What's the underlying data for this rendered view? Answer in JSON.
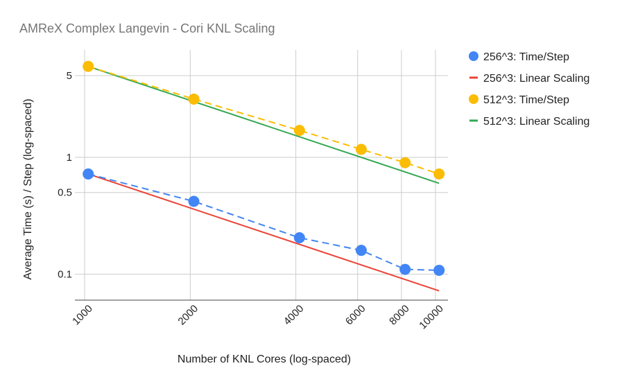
{
  "chart_data": {
    "type": "scatter",
    "title": "AMReX Complex Langevin - Cori KNL Scaling",
    "xlabel": "Number of KNL Cores (log-spaced)",
    "ylabel": "Average Time (s) / Step (log-spaced)",
    "x_scale": "log",
    "y_scale": "log",
    "xlim": [
      1000,
      10000
    ],
    "ylim": [
      0.06,
      8.3
    ],
    "x_ticks": [
      1000,
      2000,
      4000,
      6000,
      8000,
      10000
    ],
    "x_tick_labels": [
      "1000",
      "2000",
      "4000",
      "6000",
      "8000",
      "10000"
    ],
    "y_ticks": [
      0.1,
      0.5,
      1,
      5
    ],
    "y_tick_labels": [
      "0.1",
      "0.5",
      "1",
      "5"
    ],
    "grid": true,
    "legend_position": "right",
    "series": [
      {
        "name": "256^3: Time/Step",
        "style": "markers-dashed",
        "color": "#4285f4",
        "points": [
          [
            1024,
            0.72
          ],
          [
            2048,
            0.42
          ],
          [
            4096,
            0.205
          ],
          [
            6144,
            0.16
          ],
          [
            8192,
            0.11
          ],
          [
            10240,
            0.108
          ]
        ]
      },
      {
        "name": "256^3: Linear Scaling",
        "style": "line",
        "color": "#ea4335",
        "points": [
          [
            1024,
            0.72
          ],
          [
            10240,
            0.072
          ]
        ]
      },
      {
        "name": "512^3: Time/Step",
        "style": "markers-dashed",
        "color": "#fbbc04",
        "points": [
          [
            1024,
            6.0
          ],
          [
            2048,
            3.15
          ],
          [
            4096,
            1.7
          ],
          [
            6144,
            1.17
          ],
          [
            8192,
            0.9
          ],
          [
            10240,
            0.72
          ]
        ]
      },
      {
        "name": "512^3: Linear Scaling",
        "style": "line",
        "color": "#34a853",
        "points": [
          [
            1024,
            6.0
          ],
          [
            10240,
            0.6
          ]
        ]
      }
    ]
  }
}
